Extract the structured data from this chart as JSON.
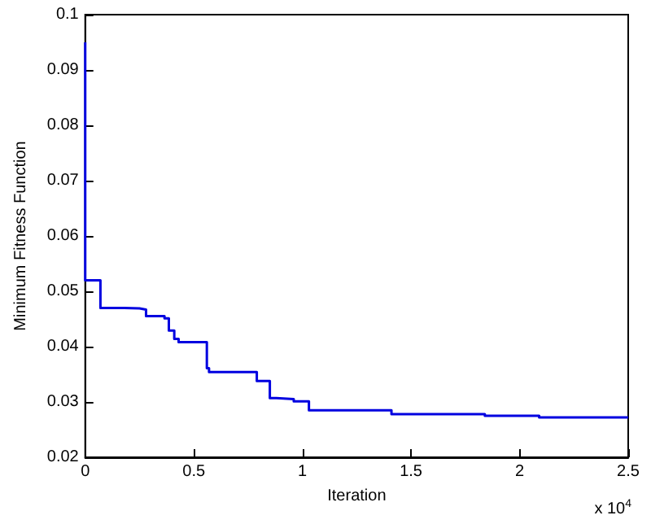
{
  "chart_data": {
    "type": "step",
    "xlabel": "Iteration",
    "ylabel": "Minimum Fitness Function",
    "x": [
      0,
      0,
      0.07,
      0.18,
      0.25,
      0.28,
      0.365,
      0.385,
      0.41,
      0.43,
      0.56,
      0.57,
      0.79,
      0.85,
      0.88,
      0.96,
      1.03,
      1.41,
      1.84,
      2.09,
      2.5
    ],
    "series": [
      {
        "color": "#0000e0",
        "values": [
          0.095,
          0.052,
          0.047,
          0.0469,
          0.0467,
          0.0455,
          0.0451,
          0.0429,
          0.0414,
          0.0408,
          0.0361,
          0.0354,
          0.0338,
          0.0307,
          0.0305,
          0.0301,
          0.0285,
          0.0278,
          0.0275,
          0.0272,
          0.0272
        ]
      }
    ],
    "xlim": [
      0,
      2.5
    ],
    "xticks": [
      0,
      0.5,
      1,
      1.5,
      2,
      2.5
    ],
    "ylim": [
      0.02,
      0.1
    ],
    "yticks": [
      0.02,
      0.03,
      0.04,
      0.05,
      0.06,
      0.07,
      0.08,
      0.09,
      0.1
    ],
    "annotations": [
      "x 10$^{4}$"
    ],
    "grid": false,
    "marker": "none",
    "line_style": "solid"
  }
}
